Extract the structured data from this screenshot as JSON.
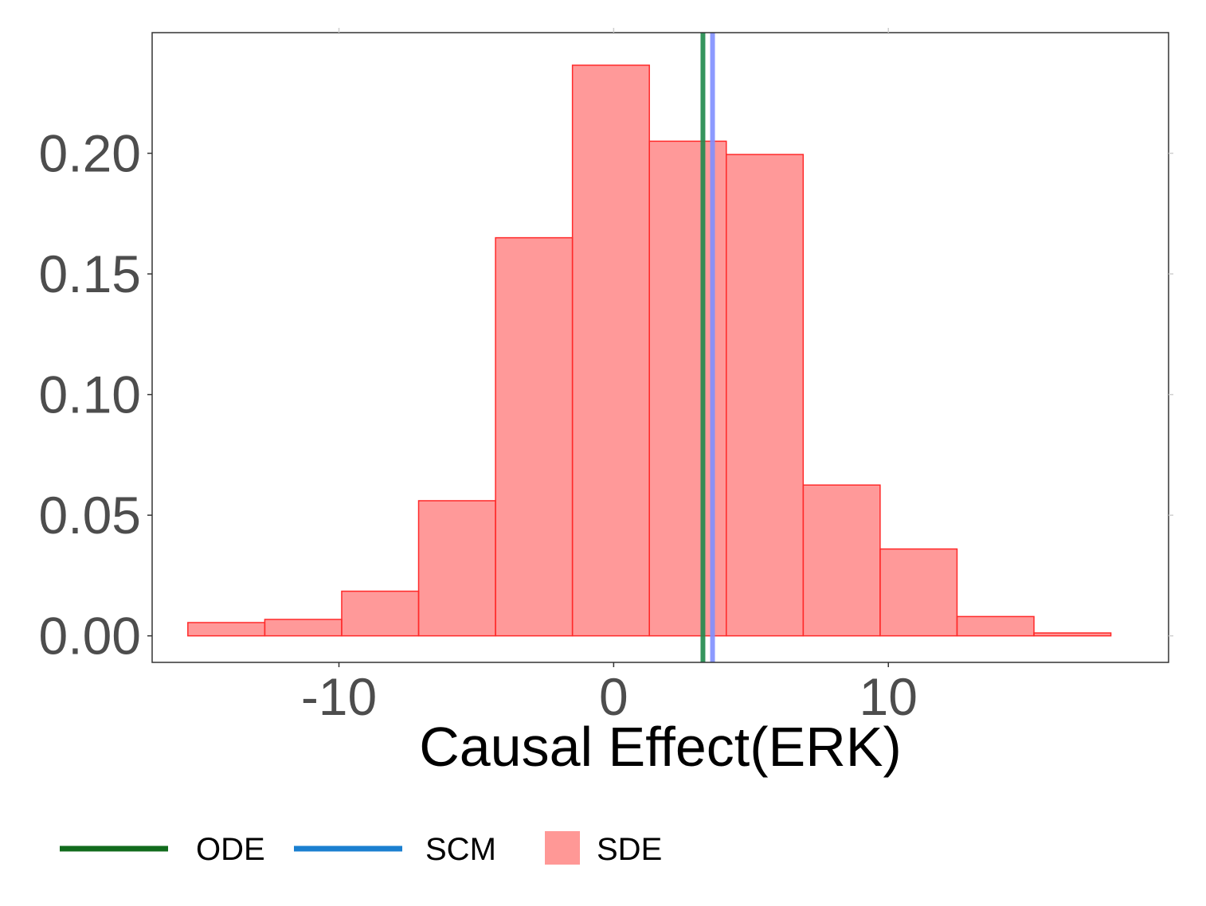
{
  "chart_data": {
    "type": "bar",
    "xlabel": "Causal Effect(ERK)",
    "ylabel": "",
    "xlim": [
      -16.8,
      20.2
    ],
    "ylim": [
      -0.011,
      0.25
    ],
    "grid": false,
    "x_ticks": [
      -10,
      0,
      10
    ],
    "x_tick_labels": [
      "-10",
      "0",
      "10"
    ],
    "y_ticks": [
      0.0,
      0.05,
      0.1,
      0.15,
      0.2
    ],
    "y_tick_labels": [
      "0.00",
      "0.05",
      "0.10",
      "0.15",
      "0.20"
    ],
    "bins": [
      {
        "x0": -15.5,
        "x1": -12.7,
        "value": 0.0055
      },
      {
        "x0": -12.7,
        "x1": -9.9,
        "value": 0.0068
      },
      {
        "x0": -9.9,
        "x1": -7.1,
        "value": 0.0185
      },
      {
        "x0": -7.1,
        "x1": -4.3,
        "value": 0.056
      },
      {
        "x0": -4.3,
        "x1": -1.5,
        "value": 0.165
      },
      {
        "x0": -1.5,
        "x1": 1.3,
        "value": 0.2365
      },
      {
        "x0": 1.3,
        "x1": 4.1,
        "value": 0.205
      },
      {
        "x0": 4.1,
        "x1": 6.9,
        "value": 0.1995
      },
      {
        "x0": 6.9,
        "x1": 9.7,
        "value": 0.0625
      },
      {
        "x0": 9.7,
        "x1": 12.5,
        "value": 0.036
      },
      {
        "x0": 12.5,
        "x1": 15.3,
        "value": 0.008
      },
      {
        "x0": 15.3,
        "x1": 18.1,
        "value": 0.0012
      }
    ],
    "vlines": [
      {
        "name": "ODE",
        "x": 3.25,
        "color": "#1f8a4c"
      },
      {
        "name": "SCM",
        "x": 3.6,
        "color": "#7f8fff"
      }
    ],
    "histogram_fill": "#ff3333",
    "histogram_stroke": "#ff2a2a",
    "legend_position": "bottom",
    "legend": [
      {
        "label": "ODE",
        "kind": "line",
        "color": "#116b1c"
      },
      {
        "label": "SCM",
        "kind": "line",
        "color": "#1a7fd0"
      },
      {
        "label": "SDE",
        "kind": "box",
        "color": "#ff9896"
      }
    ]
  }
}
